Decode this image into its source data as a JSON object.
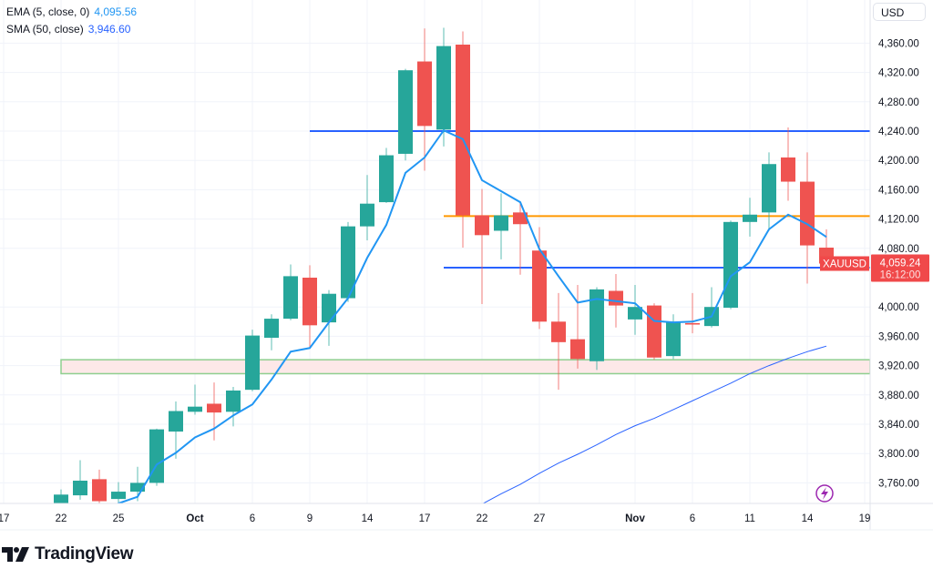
{
  "legend": {
    "ema_label": "EMA (5, close, 0)",
    "ema_value": "4,095.56",
    "sma_label": "SMA (50, close)",
    "sma_value": "3,946.60"
  },
  "currency": "USD",
  "symbol_label": "XAUUSD",
  "last_price": "4,059.24",
  "countdown": "16:12:00",
  "brand": "TradingView",
  "icons": {
    "event": "lightning-icon",
    "logo": "tradingview-logo-icon"
  },
  "colors": {
    "up": "#26a69a",
    "down": "#ef5350",
    "ema": "#2196f3",
    "sma": "#2962ff",
    "hline": "#2962ff",
    "orange_line": "#ff9800",
    "zone_fill": "#fde8e8",
    "zone_border": "#8fcf8f",
    "badge": "#f0494a",
    "event": "#9c27b0"
  },
  "chart_data": {
    "type": "candlestick",
    "symbol": "XAUUSD",
    "dates": [
      "Sep 22",
      "Sep 23",
      "Sep 24",
      "Sep 25",
      "Sep 26",
      "Sep 29",
      "Sep 30",
      "Oct 1",
      "Oct 2",
      "Oct 3",
      "Oct 6",
      "Oct 7",
      "Oct 8",
      "Oct 9",
      "Oct 10",
      "Oct 13",
      "Oct 14",
      "Oct 15",
      "Oct 16",
      "Oct 17",
      "Oct 20",
      "Oct 21",
      "Oct 22",
      "Oct 23",
      "Oct 24",
      "Oct 27",
      "Oct 28",
      "Oct 29",
      "Oct 30",
      "Oct 31",
      "Nov 3",
      "Nov 4",
      "Nov 5",
      "Nov 6",
      "Nov 7",
      "Nov 10",
      "Nov 11",
      "Nov 12",
      "Nov 13",
      "Nov 14",
      "Nov 17"
    ],
    "ohlc": [
      [
        3711,
        3751,
        3701,
        3744
      ],
      [
        3743,
        3791,
        3737,
        3763
      ],
      [
        3765,
        3778,
        3730,
        3735
      ],
      [
        3738,
        3761,
        3731,
        3748
      ],
      [
        3748,
        3782,
        3735,
        3760
      ],
      [
        3760,
        3834,
        3756,
        3833
      ],
      [
        3830,
        3871,
        3793,
        3858
      ],
      [
        3857,
        3894,
        3853,
        3864
      ],
      [
        3868,
        3897,
        3818,
        3856
      ],
      [
        3857,
        3891,
        3837,
        3886
      ],
      [
        3887,
        3969,
        3885,
        3961
      ],
      [
        3958,
        3990,
        3941,
        3984
      ],
      [
        3984,
        4058,
        3982,
        4042
      ],
      [
        4040,
        4057,
        3944,
        3975
      ],
      [
        3979,
        4023,
        3947,
        4018
      ],
      [
        4012,
        4116,
        4007,
        4110
      ],
      [
        4110,
        4180,
        4091,
        4141
      ],
      [
        4143,
        4217,
        4142,
        4207
      ],
      [
        4209,
        4325,
        4200,
        4323
      ],
      [
        4335,
        4380,
        4186,
        4247
      ],
      [
        4242,
        4381,
        4219,
        4356
      ],
      [
        4358,
        4376,
        4081,
        4125
      ],
      [
        4125,
        4161,
        4004,
        4098
      ],
      [
        4104,
        4155,
        4065,
        4125
      ],
      [
        4129,
        4141,
        4044,
        4113
      ],
      [
        4077,
        4109,
        3970,
        3980
      ],
      [
        3980,
        4019,
        3887,
        3952
      ],
      [
        3956,
        4030,
        3916,
        3929
      ],
      [
        3926,
        4027,
        3914,
        4024
      ],
      [
        4022,
        4045,
        3972,
        4002
      ],
      [
        3983,
        4030,
        3962,
        4000
      ],
      [
        4002,
        4005,
        3928,
        3931
      ],
      [
        3933,
        3990,
        3929,
        3979
      ],
      [
        3978,
        4019,
        3964,
        3976
      ],
      [
        3974,
        4027,
        3972,
        4000
      ],
      [
        3999,
        4118,
        3997,
        4116
      ],
      [
        4116,
        4149,
        4096,
        4126
      ],
      [
        4129,
        4211,
        4104,
        4195
      ],
      [
        4204,
        4245,
        4145,
        4171
      ],
      [
        4171,
        4211,
        4032,
        4084
      ],
      [
        4081,
        4106,
        4057,
        4059.24
      ]
    ],
    "ema5": [
      null,
      null,
      3715,
      3732,
      3741,
      3785,
      3801,
      3822,
      3834,
      3852,
      3867,
      3901,
      3939,
      3944,
      3979,
      4012,
      4067,
      4112,
      4183,
      4204,
      4241,
      4229,
      4173,
      4158,
      4143,
      4079,
      4042,
      4006,
      4011,
      4008,
      4005,
      3981,
      3979,
      3980,
      3987,
      4042,
      4061,
      4106,
      4126,
      4113,
      4095.56
    ],
    "sma50": [
      null,
      null,
      null,
      null,
      null,
      null,
      null,
      null,
      null,
      null,
      null,
      null,
      null,
      null,
      null,
      null,
      null,
      null,
      null,
      null,
      null,
      null,
      3731,
      3745,
      3758,
      3773,
      3787,
      3799,
      3812,
      3826,
      3838,
      3848,
      3860,
      3872,
      3884,
      3896,
      3909,
      3920,
      3930,
      3939,
      3946.6
    ],
    "horizontal_lines": [
      {
        "price": 4240,
        "from": "Oct 9",
        "color": "blue"
      },
      {
        "price": 4124,
        "from": "Oct 20",
        "color": "orange"
      },
      {
        "price": 4053.6,
        "from": "Oct 20",
        "color": "blue"
      }
    ],
    "zone": {
      "top": 3928,
      "bottom": 3909,
      "from": "Sep 22"
    },
    "y_ticks": [
      "4,360.00",
      "4,320.00",
      "4,280.00",
      "4,240.00",
      "4,200.00",
      "4,160.00",
      "4,120.00",
      "4,080.00",
      "4,000.00",
      "3,960.00",
      "3,920.00",
      "3,880.00",
      "3,840.00",
      "3,800.00",
      "3,760.00"
    ],
    "y_tick_values": [
      4360,
      4320,
      4280,
      4240,
      4200,
      4160,
      4120,
      4080,
      4000,
      3960,
      3920,
      3880,
      3840,
      3800,
      3760
    ],
    "x_ticks": [
      {
        "label": "17",
        "day": -3,
        "bold": false
      },
      {
        "label": "22",
        "day": 0,
        "bold": false
      },
      {
        "label": "25",
        "day": 3,
        "bold": false
      },
      {
        "label": "Oct",
        "day": 7,
        "bold": true
      },
      {
        "label": "6",
        "day": 10,
        "bold": false
      },
      {
        "label": "9",
        "day": 13,
        "bold": false
      },
      {
        "label": "14",
        "day": 16,
        "bold": false
      },
      {
        "label": "17",
        "day": 19,
        "bold": false
      },
      {
        "label": "22",
        "day": 22,
        "bold": false
      },
      {
        "label": "27",
        "day": 25,
        "bold": false
      },
      {
        "label": "Nov",
        "day": 30,
        "bold": true
      },
      {
        "label": "6",
        "day": 33,
        "bold": false
      },
      {
        "label": "11",
        "day": 36,
        "bold": false
      },
      {
        "label": "14",
        "day": 39,
        "bold": false
      },
      {
        "label": "19",
        "day": 42,
        "bold": false
      }
    ],
    "ylim": [
      3730,
      4420
    ]
  }
}
